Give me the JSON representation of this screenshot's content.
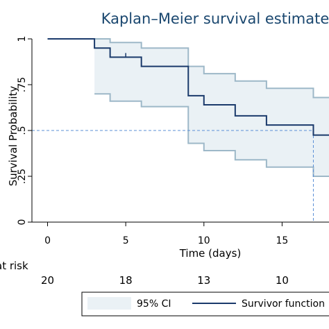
{
  "chart_data": {
    "type": "line",
    "title": "Kaplan–Meier survival estimate",
    "xlabel": "Time (days)",
    "ylabel": "Survival Probability",
    "xlim": [
      -1,
      18
    ],
    "ylim": [
      0,
      1
    ],
    "x_ticks": [
      0,
      5,
      10,
      15
    ],
    "y_ticks": [
      0,
      0.25,
      0.5,
      0.75,
      1
    ],
    "y_tick_labels": [
      "0",
      ".25",
      ".5",
      ".75",
      "1"
    ],
    "grid": false,
    "survival_step": [
      {
        "x": 0,
        "y": 1.0
      },
      {
        "x": 3,
        "y": 0.95
      },
      {
        "x": 4,
        "y": 0.9
      },
      {
        "x": 6,
        "y": 0.85
      },
      {
        "x": 9,
        "y": 0.69
      },
      {
        "x": 10,
        "y": 0.64
      },
      {
        "x": 12,
        "y": 0.58
      },
      {
        "x": 14,
        "y": 0.53
      },
      {
        "x": 17,
        "y": 0.475
      },
      {
        "x": 18,
        "y": 0.475
      }
    ],
    "ci_upper": [
      {
        "x": 3,
        "y": 1.0
      },
      {
        "x": 4,
        "y": 0.98
      },
      {
        "x": 6,
        "y": 0.95
      },
      {
        "x": 9,
        "y": 0.85
      },
      {
        "x": 10,
        "y": 0.81
      },
      {
        "x": 12,
        "y": 0.77
      },
      {
        "x": 14,
        "y": 0.73
      },
      {
        "x": 17,
        "y": 0.68
      },
      {
        "x": 18,
        "y": 0.68
      }
    ],
    "ci_lower": [
      {
        "x": 3,
        "y": 0.7
      },
      {
        "x": 4,
        "y": 0.66
      },
      {
        "x": 6,
        "y": 0.63
      },
      {
        "x": 9,
        "y": 0.43
      },
      {
        "x": 10,
        "y": 0.39
      },
      {
        "x": 12,
        "y": 0.34
      },
      {
        "x": 14,
        "y": 0.3
      },
      {
        "x": 17,
        "y": 0.25
      },
      {
        "x": 18,
        "y": 0.25
      }
    ],
    "censor_marks": [
      {
        "x": 5,
        "y": 0.9
      }
    ],
    "median_reference": {
      "y": 0.5,
      "x": 17
    },
    "number_at_risk": {
      "label": "at risk",
      "entries": [
        {
          "x": 0,
          "value": "20"
        },
        {
          "x": 5,
          "value": "18"
        },
        {
          "x": 10,
          "value": "13"
        },
        {
          "x": 15,
          "value": "10"
        }
      ]
    },
    "legend": {
      "position": "bottom",
      "entries": [
        {
          "label": "95% CI",
          "kind": "band"
        },
        {
          "label": "Survivor function",
          "kind": "line"
        }
      ]
    },
    "colors": {
      "title": "#1a476f",
      "survivor_line": "#1a3a6b",
      "ci_line": "#9db8c8",
      "ci_fill": "#eaf1f5",
      "reference_line": "#5b8fd6",
      "axis": "#000000"
    }
  }
}
